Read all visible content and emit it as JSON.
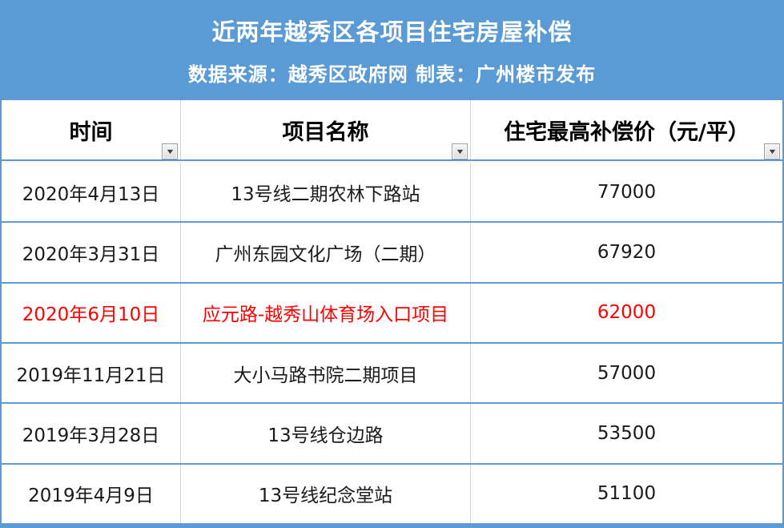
{
  "banner": {
    "title": "近两年越秀区各项目住宅房屋补偿",
    "subtitle": "数据来源：越秀区政府网 制表：广州楼市发布"
  },
  "table": {
    "columns": [
      {
        "label": "时间"
      },
      {
        "label": "项目名称"
      },
      {
        "label": "住宅最高补偿价（元/平）"
      }
    ],
    "filter_icon": "▼",
    "rows": [
      {
        "date": "2020年4月13日",
        "project": "13号线二期农林下路站",
        "price": "77000",
        "highlight": false
      },
      {
        "date": "2020年3月31日",
        "project": "广州东园文化广场（二期）",
        "price": "67920",
        "highlight": false
      },
      {
        "date": "2020年6月10日",
        "project": "应元路-越秀山体育场入口项目",
        "price": "62000",
        "highlight": true
      },
      {
        "date": "2019年11月21日",
        "project": "大小马路书院二期项目",
        "price": "57000",
        "highlight": false
      },
      {
        "date": "2019年3月28日",
        "project": "13号线仓边路",
        "price": "53500",
        "highlight": false
      },
      {
        "date": "2019年4月9日",
        "project": "13号线纪念堂站",
        "price": "51100",
        "highlight": false
      }
    ]
  },
  "colors": {
    "banner-blue": "#5B9BD5",
    "border-blue": "#5B9BD5",
    "divider-gray": "#D4D4D4",
    "highlight-red": "#FF0000",
    "header-text": "#000000",
    "body-text": "#1A1A1A"
  }
}
